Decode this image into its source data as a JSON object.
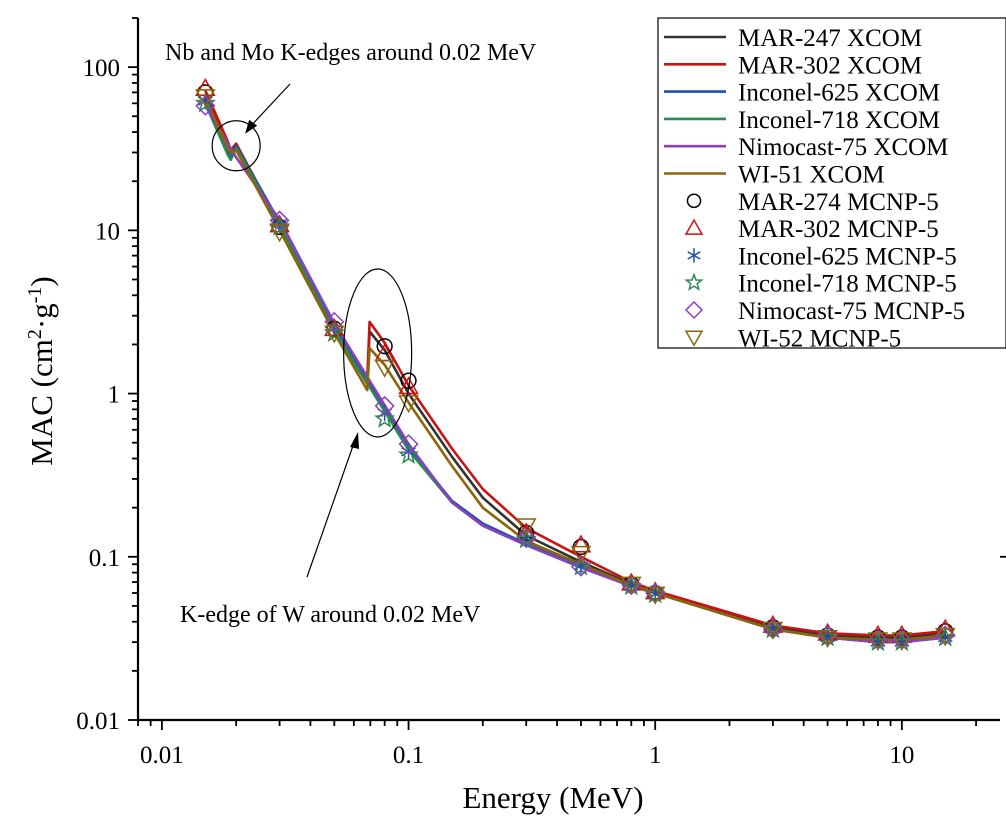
{
  "chart_data": {
    "type": "line",
    "title": "",
    "xlabel": "Energy (MeV)",
    "ylabel_parts": {
      "base": "MAC (cm",
      "sup1": "2",
      "mid": "·g",
      "sup2": "-1",
      "end": ")"
    },
    "xscale": "log",
    "yscale": "log",
    "xlim": [
      0.008,
      25
    ],
    "ylim": [
      0.01,
      200
    ],
    "x_ticks": [
      {
        "value": 0.01,
        "label": "0.01"
      },
      {
        "value": 0.1,
        "label": "0.1"
      },
      {
        "value": 1,
        "label": "1"
      },
      {
        "value": 10,
        "label": "10"
      }
    ],
    "y_ticks": [
      {
        "value": 0.01,
        "label": "0.01"
      },
      {
        "value": 0.1,
        "label": "0.1"
      },
      {
        "value": 1,
        "label": "1"
      },
      {
        "value": 10,
        "label": "10"
      },
      {
        "value": 100,
        "label": "100"
      }
    ],
    "grid": false,
    "legend_position": "top-right",
    "series": [
      {
        "name": "MAR-247 XCOM",
        "color": "#333333",
        "x": [
          0.015,
          0.0185,
          0.019,
          0.02,
          0.03,
          0.05,
          0.068,
          0.0695,
          0.08,
          0.1,
          0.15,
          0.2,
          0.3,
          0.5,
          0.8,
          1,
          3,
          5,
          8,
          10,
          15
        ],
        "y": [
          68,
          33,
          30,
          33,
          10.5,
          2.45,
          1.15,
          2.4,
          1.85,
          1.0,
          0.41,
          0.23,
          0.135,
          0.093,
          0.068,
          0.061,
          0.037,
          0.033,
          0.032,
          0.032,
          0.034
        ]
      },
      {
        "name": "MAR-302 XCOM",
        "color": "#cc1111",
        "x": [
          0.015,
          0.0185,
          0.019,
          0.02,
          0.03,
          0.05,
          0.068,
          0.0695,
          0.08,
          0.1,
          0.15,
          0.2,
          0.3,
          0.5,
          0.8,
          1,
          3,
          5,
          8,
          10,
          15
        ],
        "y": [
          72,
          35,
          31,
          34,
          10.8,
          2.5,
          1.2,
          2.75,
          2.05,
          1.12,
          0.46,
          0.26,
          0.15,
          0.1,
          0.07,
          0.062,
          0.038,
          0.034,
          0.033,
          0.033,
          0.035
        ]
      },
      {
        "name": "Inconel-625 XCOM",
        "color": "#1f4fa8",
        "x": [
          0.015,
          0.0185,
          0.019,
          0.02,
          0.03,
          0.05,
          0.08,
          0.1,
          0.15,
          0.2,
          0.3,
          0.5,
          0.8,
          1,
          3,
          5,
          8,
          10,
          15
        ],
        "y": [
          63,
          30,
          28,
          33,
          11.2,
          2.55,
          0.82,
          0.47,
          0.22,
          0.16,
          0.12,
          0.087,
          0.066,
          0.06,
          0.036,
          0.032,
          0.03,
          0.03,
          0.032
        ]
      },
      {
        "name": "Inconel-718 XCOM",
        "color": "#2a8a52",
        "x": [
          0.015,
          0.0185,
          0.019,
          0.02,
          0.03,
          0.05,
          0.08,
          0.1,
          0.15,
          0.2,
          0.3,
          0.5,
          0.8,
          1,
          3,
          5,
          8,
          10,
          15
        ],
        "y": [
          60,
          29,
          27,
          32,
          10.8,
          2.45,
          0.78,
          0.45,
          0.215,
          0.155,
          0.118,
          0.086,
          0.066,
          0.06,
          0.036,
          0.032,
          0.03,
          0.03,
          0.032
        ]
      },
      {
        "name": "Nimocast-75 XCOM",
        "color": "#8a3fc6",
        "x": [
          0.015,
          0.02,
          0.03,
          0.05,
          0.08,
          0.1,
          0.15,
          0.2,
          0.3,
          0.5,
          0.8,
          1,
          3,
          5,
          8,
          10,
          15
        ],
        "y": [
          58,
          28,
          11.6,
          2.7,
          0.85,
          0.49,
          0.215,
          0.155,
          0.118,
          0.086,
          0.066,
          0.06,
          0.036,
          0.032,
          0.03,
          0.03,
          0.032
        ]
      },
      {
        "name": "WI-51 XCOM",
        "color": "#8b6508",
        "x": [
          0.015,
          0.0185,
          0.019,
          0.02,
          0.03,
          0.05,
          0.068,
          0.0695,
          0.08,
          0.1,
          0.15,
          0.2,
          0.3,
          0.5,
          0.8,
          1,
          3,
          5,
          8,
          10,
          15
        ],
        "y": [
          65,
          32,
          30,
          31,
          10,
          2.35,
          1.05,
          1.9,
          1.5,
          0.88,
          0.36,
          0.2,
          0.125,
          0.09,
          0.067,
          0.06,
          0.036,
          0.032,
          0.031,
          0.031,
          0.033
        ]
      },
      {
        "name": "MAR-274 MCNP-5",
        "color": "#000000",
        "marker": "circle",
        "x": [
          0.015,
          0.03,
          0.05,
          0.08,
          0.1,
          0.3,
          0.5,
          0.8,
          1,
          3,
          5,
          8,
          10,
          15
        ],
        "y": [
          70,
          10.5,
          2.5,
          1.95,
          1.2,
          0.14,
          0.115,
          0.068,
          0.06,
          0.037,
          0.033,
          0.032,
          0.032,
          0.035
        ]
      },
      {
        "name": "MAR-302 MCNP-5",
        "color": "#cc1111",
        "marker": "triangle-up",
        "x": [
          0.015,
          0.03,
          0.05,
          0.08,
          0.1,
          0.3,
          0.5,
          0.8,
          1,
          3,
          5,
          8,
          10,
          15
        ],
        "y": [
          74,
          10.8,
          2.5,
          1.75,
          1.1,
          0.14,
          0.118,
          0.069,
          0.061,
          0.038,
          0.034,
          0.033,
          0.033,
          0.036
        ]
      },
      {
        "name": "Inconel-625 MCNP-5",
        "color": "#1f4fa8",
        "marker": "asterisk",
        "x": [
          0.015,
          0.03,
          0.05,
          0.08,
          0.1,
          0.3,
          0.5,
          0.8,
          1,
          3,
          5,
          8,
          10,
          15
        ],
        "y": [
          62,
          11,
          2.5,
          0.76,
          0.44,
          0.13,
          0.088,
          0.066,
          0.059,
          0.036,
          0.032,
          0.03,
          0.03,
          0.032
        ]
      },
      {
        "name": "Inconel-718 MCNP-5",
        "color": "#2a8a52",
        "marker": "star",
        "x": [
          0.015,
          0.03,
          0.05,
          0.08,
          0.1,
          0.3,
          0.5,
          0.8,
          1,
          3,
          5,
          8,
          10,
          15
        ],
        "y": [
          60,
          10.5,
          2.35,
          0.7,
          0.42,
          0.128,
          0.087,
          0.066,
          0.059,
          0.036,
          0.032,
          0.03,
          0.03,
          0.032
        ]
      },
      {
        "name": "Nimocast-75 MCNP-5",
        "color": "#8a3fc6",
        "marker": "diamond",
        "x": [
          0.015,
          0.03,
          0.05,
          0.08,
          0.1,
          0.3,
          0.5,
          0.8,
          1,
          3,
          5,
          8,
          10,
          15
        ],
        "y": [
          58,
          11.5,
          2.75,
          0.84,
          0.49,
          0.13,
          0.087,
          0.067,
          0.06,
          0.036,
          0.033,
          0.031,
          0.031,
          0.033
        ]
      },
      {
        "name": "WI-52 MCNP-5",
        "color": "#8b6508",
        "marker": "triangle-down",
        "x": [
          0.015,
          0.03,
          0.05,
          0.08,
          0.1,
          0.3,
          0.5,
          0.8,
          1,
          3,
          5,
          8,
          10,
          15
        ],
        "y": [
          66,
          9.8,
          2.35,
          1.45,
          0.88,
          0.155,
          0.105,
          0.068,
          0.059,
          0.036,
          0.032,
          0.031,
          0.031,
          0.033
        ]
      }
    ],
    "annotations": [
      {
        "text": "Nb and Mo K-edges around 0.02 MeV",
        "target": {
          "x": 0.02,
          "y": 33
        }
      },
      {
        "text": "K-edge of W around 0.02 MeV",
        "target": {
          "x": 0.08,
          "y": 2.1
        }
      }
    ]
  }
}
